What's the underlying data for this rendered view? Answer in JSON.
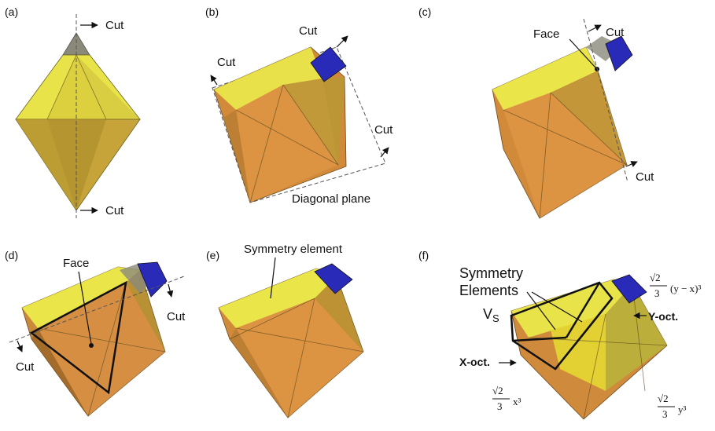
{
  "panels": {
    "a": {
      "label": "(a)",
      "cut_top": "Cut",
      "cut_bottom": "Cut"
    },
    "b": {
      "label": "(b)",
      "cut_top": "Cut",
      "cut_left": "Cut",
      "cut_right": "Cut",
      "plane": "Diagonal plane"
    },
    "c": {
      "label": "(c)",
      "face": "Face",
      "cut_top": "Cut",
      "cut_bottom": "Cut"
    },
    "d": {
      "label": "(d)",
      "face": "Face",
      "cut_right": "Cut",
      "cut_left": "Cut"
    },
    "e": {
      "label": "(e)",
      "symmetry": "Symmetry element"
    },
    "f": {
      "label": "(f)",
      "sym_line1": "Symmetry",
      "sym_line2": "Elements",
      "vs": "V",
      "vs_sub": "S",
      "yoct": "Y-oct.",
      "xoct": "X-oct.",
      "f_top_coef": "√2",
      "f_top_den": "3",
      "f_top_expr": "(y − x)³",
      "f_left_coef": "√2",
      "f_left_den": "3",
      "f_left_expr": "x³",
      "f_right_coef": "√2",
      "f_right_den": "3",
      "f_right_expr": "y³"
    }
  },
  "colors": {
    "yellow": "#e8e23a",
    "orange": "#d9893a",
    "olive": "#9a8a2a",
    "blue": "#2a2ab8",
    "gray": "#8a8a8a"
  }
}
